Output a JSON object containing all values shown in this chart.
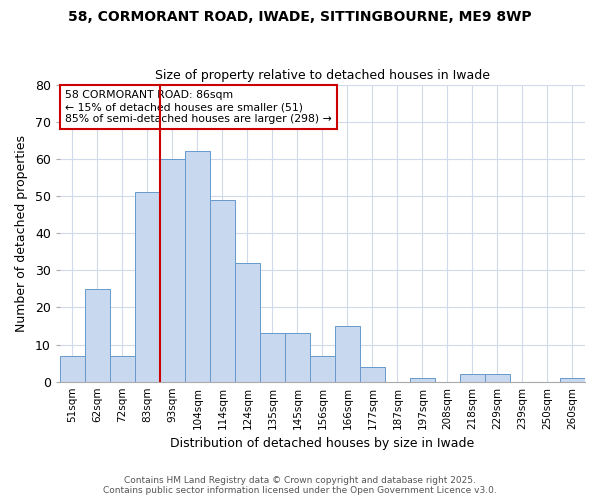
{
  "title1": "58, CORMORANT ROAD, IWADE, SITTINGBOURNE, ME9 8WP",
  "title2": "Size of property relative to detached houses in Iwade",
  "xlabel": "Distribution of detached houses by size in Iwade",
  "ylabel": "Number of detached properties",
  "categories": [
    "51sqm",
    "62sqm",
    "72sqm",
    "83sqm",
    "93sqm",
    "104sqm",
    "114sqm",
    "124sqm",
    "135sqm",
    "145sqm",
    "156sqm",
    "166sqm",
    "177sqm",
    "187sqm",
    "197sqm",
    "208sqm",
    "218sqm",
    "229sqm",
    "239sqm",
    "250sqm",
    "260sqm"
  ],
  "values": [
    7,
    25,
    7,
    51,
    60,
    62,
    49,
    32,
    13,
    13,
    7,
    15,
    4,
    0,
    1,
    0,
    2,
    2,
    0,
    0,
    1
  ],
  "bar_color": "#c8d8ee",
  "bar_edgecolor": "#6699cc",
  "redline_x": 3,
  "annotation_line1": "58 CORMORANT ROAD: 86sqm",
  "annotation_line2": "← 15% of detached houses are smaller (51)",
  "annotation_line3": "85% of semi-detached houses are larger (298) →",
  "annotation_box_color": "#ffffff",
  "annotation_box_edgecolor": "#cc0000",
  "redline_color": "#cc0000",
  "ylim": [
    0,
    80
  ],
  "yticks": [
    0,
    10,
    20,
    30,
    40,
    50,
    60,
    70,
    80
  ],
  "footer1": "Contains HM Land Registry data © Crown copyright and database right 2025.",
  "footer2": "Contains public sector information licensed under the Open Government Licence v3.0.",
  "background_color": "#ffffff",
  "grid_color": "#d0daea"
}
